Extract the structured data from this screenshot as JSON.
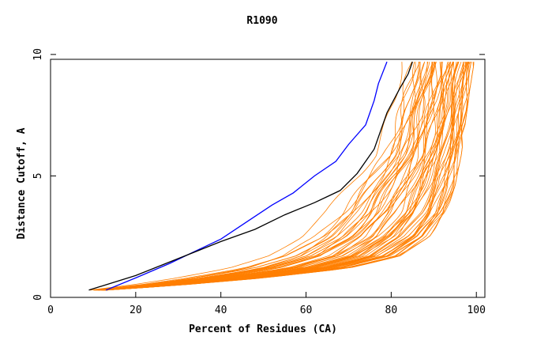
{
  "chart_data": {
    "type": "line",
    "title": "R1090",
    "xlabel": "Percent of Residues (CA)",
    "ylabel": "Distance Cutoff, A",
    "xlim": [
      0,
      102
    ],
    "ylim": [
      0,
      9.8
    ],
    "xticks": [
      0,
      20,
      40,
      60,
      80,
      100
    ],
    "yticks": [
      0,
      5,
      10
    ],
    "xtick_labels": [
      "0",
      "20",
      "40",
      "60",
      "80",
      "100"
    ],
    "ytick_labels": [
      "0",
      "5",
      "10"
    ],
    "grid": false,
    "colors": {
      "highlight_blue": "#0000ff",
      "highlight_black": "#000000",
      "group": "#ff7f00"
    },
    "series": [
      {
        "color": "#0000ff",
        "x": [
          13,
          20,
          28,
          34,
          40,
          46,
          52,
          57,
          62,
          67,
          70,
          74,
          76,
          77,
          79
        ],
        "y": [
          0.3,
          0.8,
          1.4,
          1.9,
          2.4,
          3.1,
          3.8,
          4.3,
          5.0,
          5.6,
          6.3,
          7.1,
          8.1,
          8.8,
          9.7
        ]
      },
      {
        "color": "#000000",
        "x": [
          9,
          20,
          30,
          40,
          48,
          55,
          62,
          68,
          72,
          76,
          79,
          82,
          84,
          85
        ],
        "y": [
          0.3,
          0.9,
          1.6,
          2.3,
          2.8,
          3.4,
          3.9,
          4.4,
          5.1,
          6.1,
          7.6,
          8.6,
          9.2,
          9.7
        ]
      }
    ],
    "group": {
      "name": "",
      "count": 60,
      "note": "orange model curves spanning left envelope to right envelope",
      "left_envelope": {
        "x": [
          7,
          18,
          30,
          40,
          46,
          52,
          57,
          61,
          65,
          67
        ],
        "y": [
          0.3,
          1.3,
          2.4,
          3.6,
          4.4,
          5.1,
          5.8,
          6.8,
          8.1,
          9.7
        ]
      },
      "right_envelope": {
        "x": [
          13,
          30,
          50,
          70,
          82,
          89,
          93,
          95,
          96.5,
          97.5,
          98.5,
          99.5
        ],
        "y": [
          0.3,
          0.5,
          0.8,
          1.2,
          1.7,
          2.5,
          3.5,
          4.6,
          5.9,
          7.3,
          8.6,
          9.7
        ]
      }
    }
  }
}
